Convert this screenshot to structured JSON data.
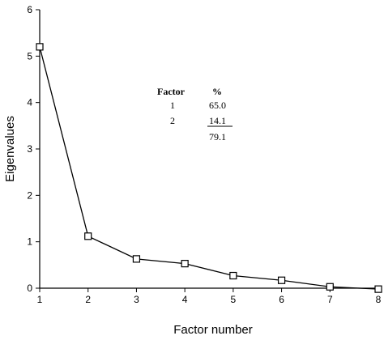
{
  "chart_data": {
    "type": "line",
    "xlabel": "Factor number",
    "ylabel": "Eigenvalues",
    "x": [
      1,
      2,
      3,
      4,
      5,
      6,
      7,
      8
    ],
    "series": [
      {
        "values": [
          5.2,
          1.12,
          0.63,
          0.53,
          0.27,
          0.17,
          0.03,
          -0.02
        ]
      }
    ],
    "xlim": [
      1,
      8
    ],
    "ylim": [
      0,
      6
    ],
    "xticks": [
      "1",
      "2",
      "3",
      "4",
      "5",
      "6",
      "7",
      "8"
    ],
    "yticks": [
      "0",
      "1",
      "2",
      "3",
      "4",
      "5",
      "6"
    ],
    "grid": false,
    "marker": "square",
    "annotation_table": {
      "headers": [
        "Factor",
        "%"
      ],
      "rows": [
        [
          "1",
          "65.0"
        ],
        [
          "2",
          "14.1"
        ]
      ],
      "total": "79.1"
    }
  }
}
